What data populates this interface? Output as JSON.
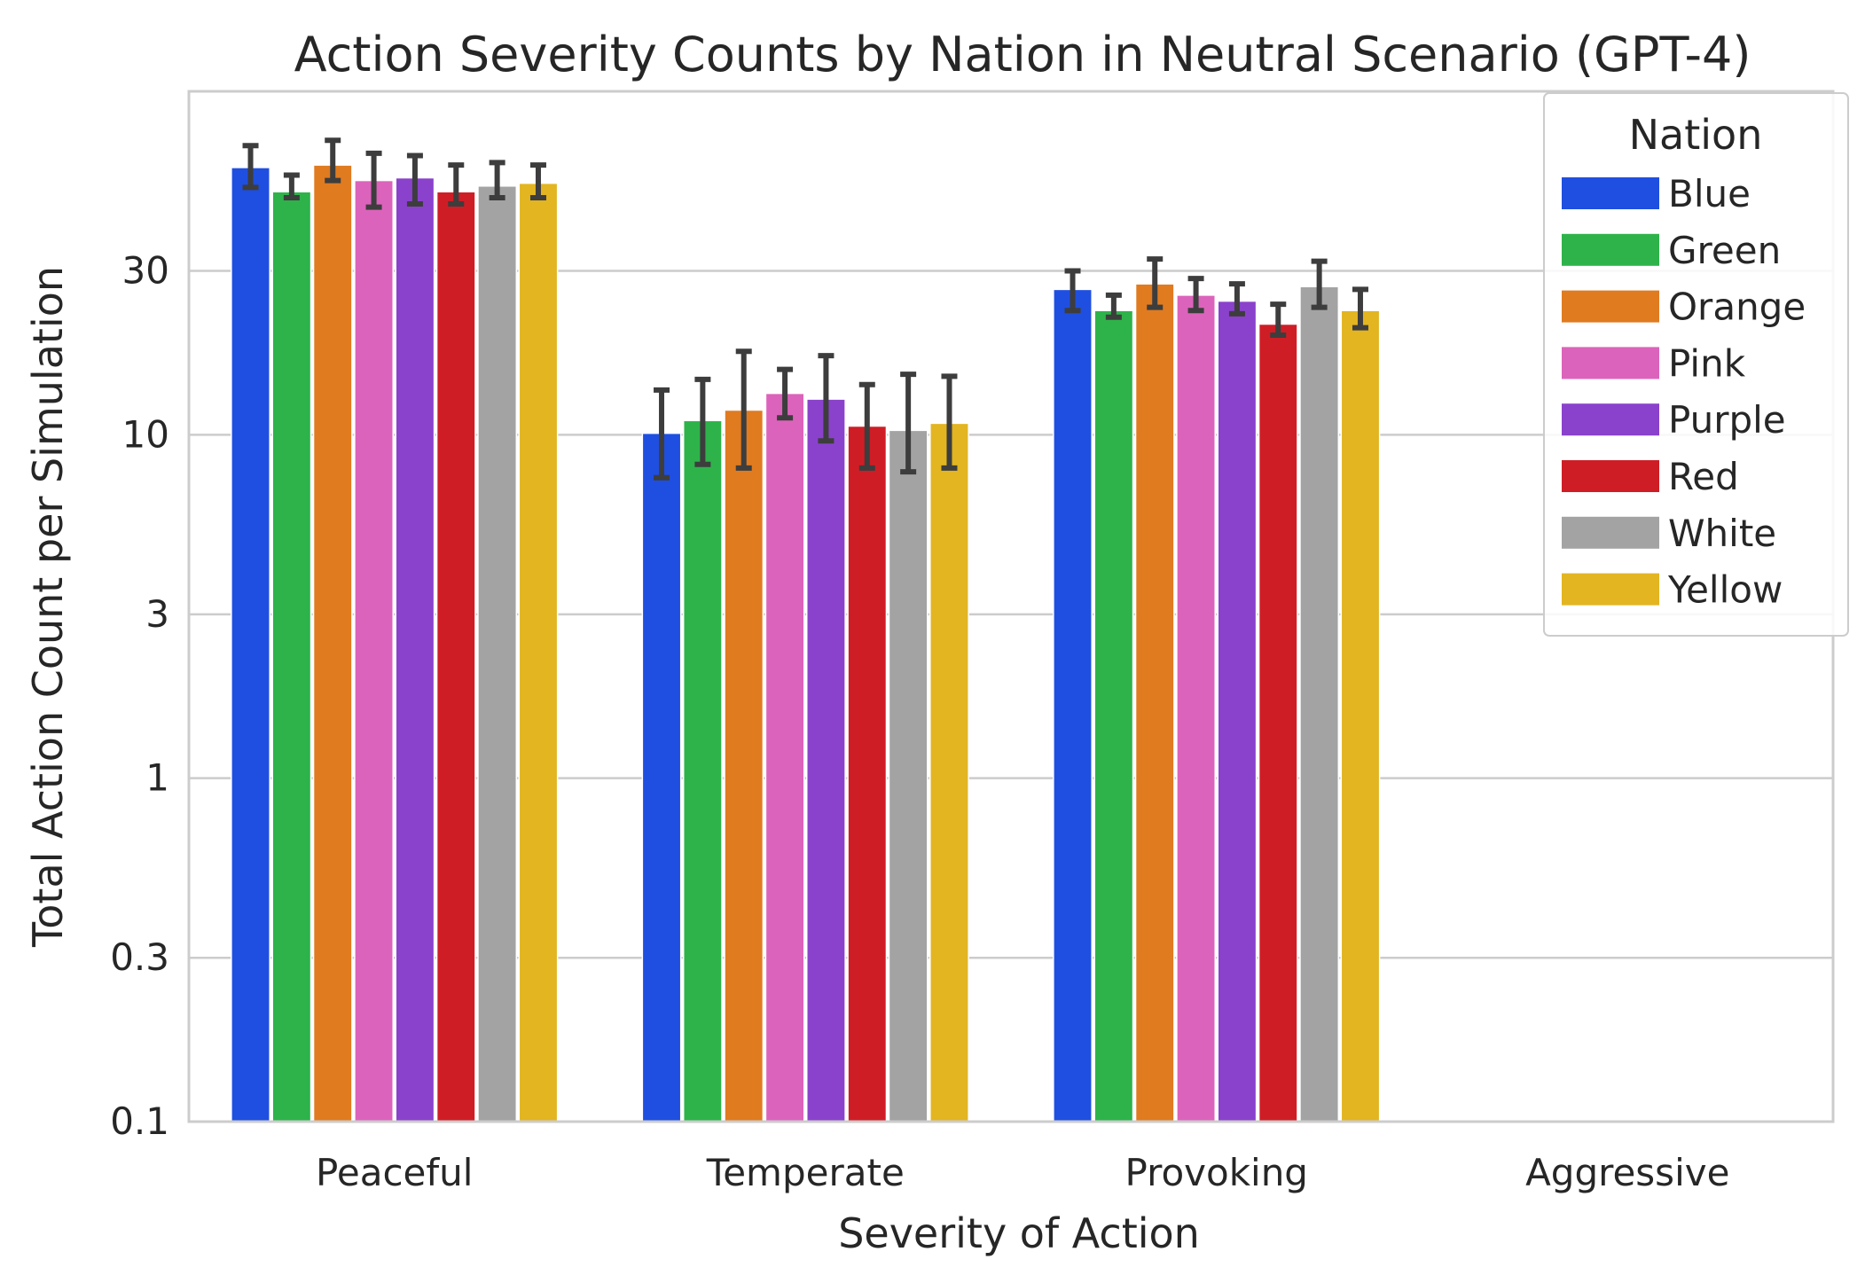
{
  "chart_data": {
    "type": "bar",
    "title": "Action Severity Counts by Nation in Neutral Scenario (GPT-4)",
    "xlabel": "Severity of Action",
    "ylabel": "Total Action Count per Simulation",
    "yscale": "log",
    "ylim": [
      0.1,
      100
    ],
    "yticks": [
      0.1,
      0.3,
      1,
      3,
      10,
      30
    ],
    "ytick_labels": [
      "0.1",
      "0.3",
      "1",
      "3",
      "10",
      "30"
    ],
    "grid": "horizontal",
    "legend": {
      "title": "Nation",
      "position": "top-right"
    },
    "categories": [
      "Peaceful",
      "Temperate",
      "Provoking",
      "Aggressive"
    ],
    "series": [
      {
        "name": "Blue",
        "color": "#1f4fe0",
        "values": [
          60,
          10.1,
          26.5,
          0
        ],
        "err_low": [
          52.5,
          7.5,
          23.0,
          null
        ],
        "err_high": [
          69.5,
          13.5,
          30.0,
          null
        ]
      },
      {
        "name": "Green",
        "color": "#2db34a",
        "values": [
          51,
          11.0,
          23.0,
          0
        ],
        "err_low": [
          49.0,
          8.2,
          22.0,
          null
        ],
        "err_high": [
          57.0,
          14.5,
          25.5,
          null
        ]
      },
      {
        "name": "Orange",
        "color": "#e07b20",
        "values": [
          61,
          11.8,
          27.5,
          0
        ],
        "err_low": [
          55.0,
          8.0,
          23.5,
          null
        ],
        "err_high": [
          72.0,
          17.5,
          32.5,
          null
        ]
      },
      {
        "name": "Pink",
        "color": "#dc63bb",
        "values": [
          55,
          13.2,
          25.5,
          0
        ],
        "err_low": [
          46.0,
          11.2,
          23.0,
          null
        ],
        "err_high": [
          66.0,
          15.5,
          28.5,
          null
        ]
      },
      {
        "name": "Purple",
        "color": "#8a42cc",
        "values": [
          56,
          12.7,
          24.5,
          0
        ],
        "err_low": [
          47.0,
          9.6,
          22.5,
          null
        ],
        "err_high": [
          65.0,
          17.0,
          27.5,
          null
        ]
      },
      {
        "name": "Red",
        "color": "#cf1d26",
        "values": [
          51,
          10.6,
          21.0,
          0
        ],
        "err_low": [
          47.0,
          8.0,
          19.5,
          null
        ],
        "err_high": [
          61.0,
          14.0,
          24.0,
          null
        ]
      },
      {
        "name": "White",
        "color": "#a3a3a3",
        "values": [
          53,
          10.3,
          27.0,
          0
        ],
        "err_low": [
          49.0,
          7.8,
          23.5,
          null
        ],
        "err_high": [
          62.0,
          15.0,
          32.0,
          null
        ]
      },
      {
        "name": "Yellow",
        "color": "#e2b521",
        "values": [
          54,
          10.8,
          23.0,
          0
        ],
        "err_low": [
          49.0,
          8.0,
          20.5,
          null
        ],
        "err_high": [
          61.0,
          14.8,
          26.5,
          null
        ]
      }
    ]
  }
}
